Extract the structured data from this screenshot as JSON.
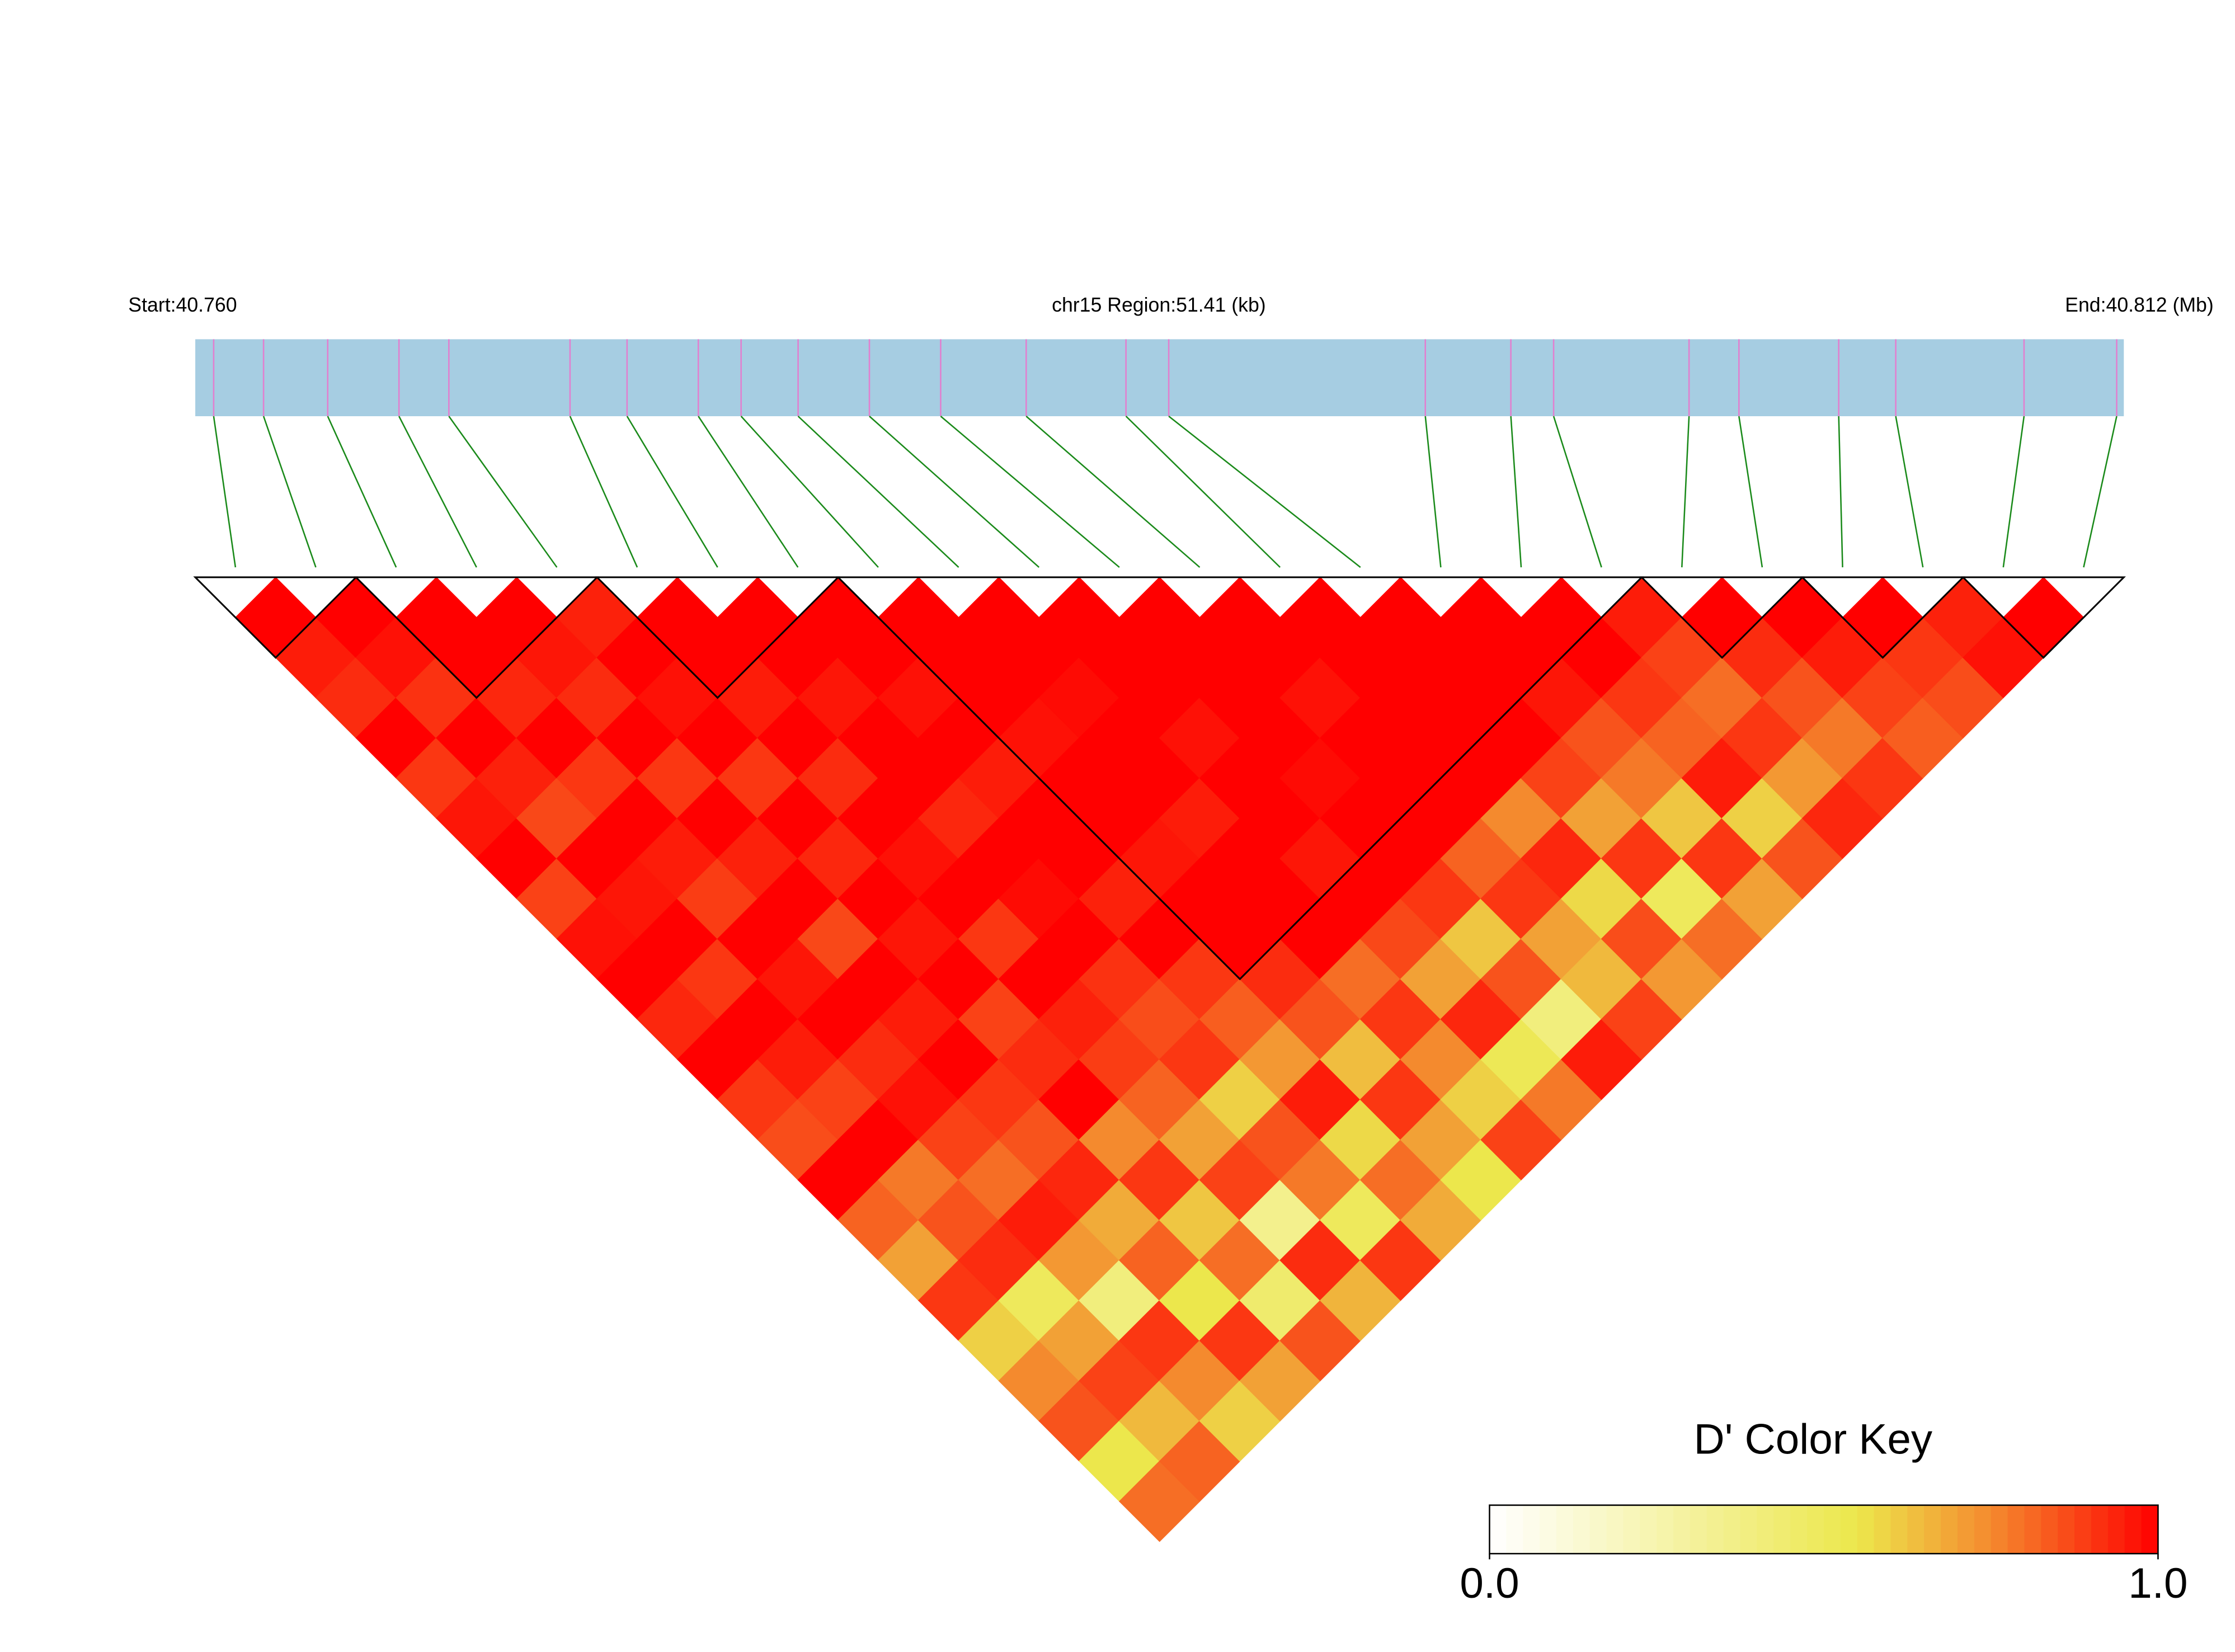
{
  "chart_data": {
    "type": "ld_heatmap",
    "start_label": "Start:40.760",
    "title": "chr15 Region:51.41 (kb)",
    "end_label": "End:40.812 (Mb)",
    "key_title": "D' Color Key",
    "xlim": [
      0,
      51.41
    ],
    "positions": [
      0.49,
      1.82,
      3.53,
      5.43,
      6.76,
      9.99,
      11.51,
      13.41,
      14.55,
      16.07,
      17.97,
      19.87,
      22.15,
      24.81,
      25.95,
      32.79,
      35.07,
      36.21,
      39.82,
      41.15,
      43.81,
      45.33,
      48.75,
      51.22
    ],
    "bar_color": "#a6cde2",
    "tick_color": "#e27fcf",
    "link_color": "#1a8a1a",
    "block_color": "#000000",
    "blocks": [
      [
        0,
        1
      ],
      [
        2,
        4
      ],
      [
        5,
        7
      ],
      [
        8,
        17
      ],
      [
        18,
        19
      ],
      [
        20,
        21
      ],
      [
        22,
        23
      ]
    ],
    "dprime": [
      [
        1,
        0.95,
        0.92,
        1,
        0.9,
        0.96,
        1,
        0.88,
        0.97,
        1,
        0.93,
        1,
        0.9,
        0.86,
        1,
        0.82,
        0.7,
        0.9,
        0.6,
        0.75,
        0.85,
        0.55,
        0.8
      ],
      [
        1,
        0.97,
        0.91,
        1,
        0.94,
        0.87,
        1,
        0.96,
        1,
        0.9,
        1,
        0.95,
        0.88,
        1,
        0.78,
        0.85,
        0.92,
        0.5,
        0.7,
        0.88,
        0.65,
        0.82
      ],
      [
        1,
        1,
        0.93,
        1,
        0.9,
        1,
        0.95,
        0.89,
        1,
        0.96,
        1,
        0.92,
        0.97,
        0.88,
        0.8,
        0.95,
        0.72,
        0.4,
        0.9,
        0.75,
        0.6
      ],
      [
        1,
        0.96,
        0.92,
        1,
        0.9,
        1,
        0.94,
        1,
        0.87,
        1,
        0.95,
        1,
        0.9,
        0.85,
        0.93,
        0.68,
        0.82,
        0.55,
        0.9,
        0.7
      ],
      [
        0.94,
        1,
        0.97,
        1,
        0.9,
        1,
        0.93,
        1,
        0.96,
        1,
        0.88,
        0.92,
        1,
        0.75,
        0.9,
        0.62,
        0.8,
        0.45,
        0.85
      ],
      [
        1,
        1,
        0.95,
        1,
        0.92,
        1,
        0.97,
        1,
        0.9,
        1,
        0.94,
        0.89,
        0.82,
        0.7,
        0.88,
        0.35,
        0.92,
        0.66
      ],
      [
        1,
        1,
        0.96,
        1,
        1,
        0.93,
        1,
        0.98,
        1,
        0.91,
        0.86,
        0.9,
        0.6,
        0.85,
        0.78,
        0.5,
        0.9
      ],
      [
        1,
        1,
        0.97,
        1,
        0.95,
        1,
        1,
        0.94,
        1,
        0.9,
        0.83,
        0.72,
        0.95,
        0.58,
        0.8,
        0.68
      ],
      [
        1,
        1,
        1,
        0.97,
        1,
        1,
        0.96,
        1,
        1,
        0.92,
        0.85,
        0.64,
        0.9,
        0.7,
        0.55
      ],
      [
        1,
        1,
        0.98,
        1,
        1,
        0.95,
        1,
        1,
        1,
        0.8,
        0.9,
        0.75,
        0.6,
        0.88
      ],
      [
        1,
        1,
        1,
        0.97,
        1,
        1,
        0.96,
        1,
        0.87,
        0.7,
        0.93,
        0.52,
        0.78
      ],
      [
        1,
        1,
        1,
        1,
        0.98,
        1,
        1,
        0.9,
        0.62,
        0.85,
        0.4,
        0.95
      ],
      [
        1,
        1,
        0.97,
        1,
        1,
        1,
        0.82,
        0.9,
        0.7,
        0.65,
        0.88
      ],
      [
        1,
        1,
        1,
        1,
        1,
        0.75,
        0.93,
        0.58,
        0.86,
        0.72
      ],
      [
        1,
        1,
        1,
        1,
        0.88,
        0.7,
        0.9,
        0.5,
        0.8
      ],
      [
        1,
        1,
        0.96,
        0.85,
        0.78,
        0.62,
        0.9,
        0.7
      ],
      [
        1,
        1,
        0.9,
        0.82,
        0.95,
        0.6,
        0.85
      ],
      [
        0.95,
        0.88,
        0.8,
        0.9,
        0.72,
        0.93
      ],
      [
        1,
        0.92,
        0.85,
        0.78,
        0.9
      ],
      [
        1,
        0.95,
        0.88,
        0.83
      ],
      [
        1,
        0.9,
        0.86
      ],
      [
        0.94,
        0.97
      ],
      [
        1
      ]
    ],
    "color_stops": [
      {
        "value": 0,
        "color": "#ffffff"
      },
      {
        "value": 0.55,
        "color": "#ece74c"
      },
      {
        "value": 0.75,
        "color": "#f48a2e"
      },
      {
        "value": 1,
        "color": "#ff0000"
      }
    ],
    "key_lim": [
      0,
      1
    ],
    "key_ticks": [
      {
        "value": 0,
        "label": "0.0"
      },
      {
        "value": 1,
        "label": "1.0"
      }
    ]
  }
}
